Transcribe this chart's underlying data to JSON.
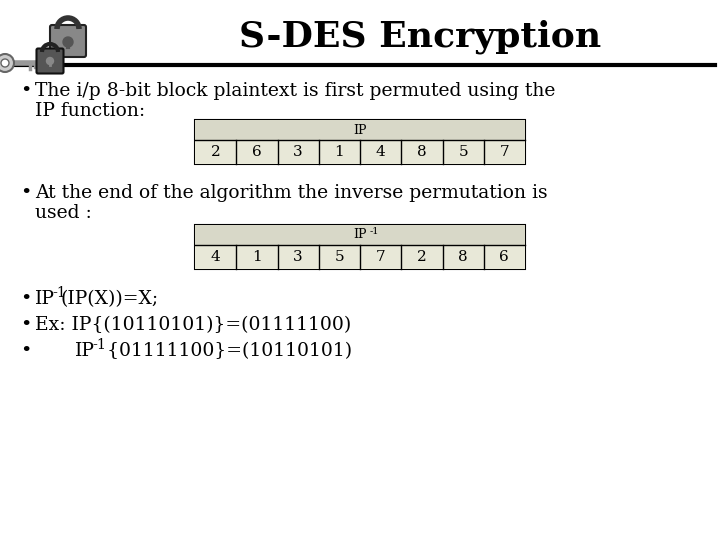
{
  "title": "S-DES Encryption",
  "title_fontsize": 26,
  "title_fontweight": "bold",
  "title_fontfamily": "serif",
  "bg_color": "#ffffff",
  "header_line_color": "#000000",
  "ip_label": "IP",
  "ip_values": [
    "2",
    "6",
    "3",
    "1",
    "4",
    "8",
    "5",
    "7"
  ],
  "ip_inv_label": "IP-1",
  "ip_inv_values": [
    "4",
    "1",
    "3",
    "5",
    "7",
    "2",
    "8",
    "6"
  ],
  "table_header_color": "#d8d8c8",
  "table_cell_color": "#e8e8d8",
  "table_border_color": "#000000",
  "bullet_fontsize": 13.5,
  "bullet_fontfamily": "serif",
  "text_color": "#000000",
  "bullet1_line1": "The i/p 8-bit block plaintext is first permuted using the",
  "bullet1_line2": "IP function:",
  "bullet2_line1": "At the end of the algorithm the inverse permutation is",
  "bullet2_line2": "used :",
  "bullet3_1": "IP-1(IP(X))=X;",
  "bullet3_2": "Ex: IP{(10110101)}=(01111100)",
  "bullet3_3": "        IP-1 {01111100}=(10110101)"
}
